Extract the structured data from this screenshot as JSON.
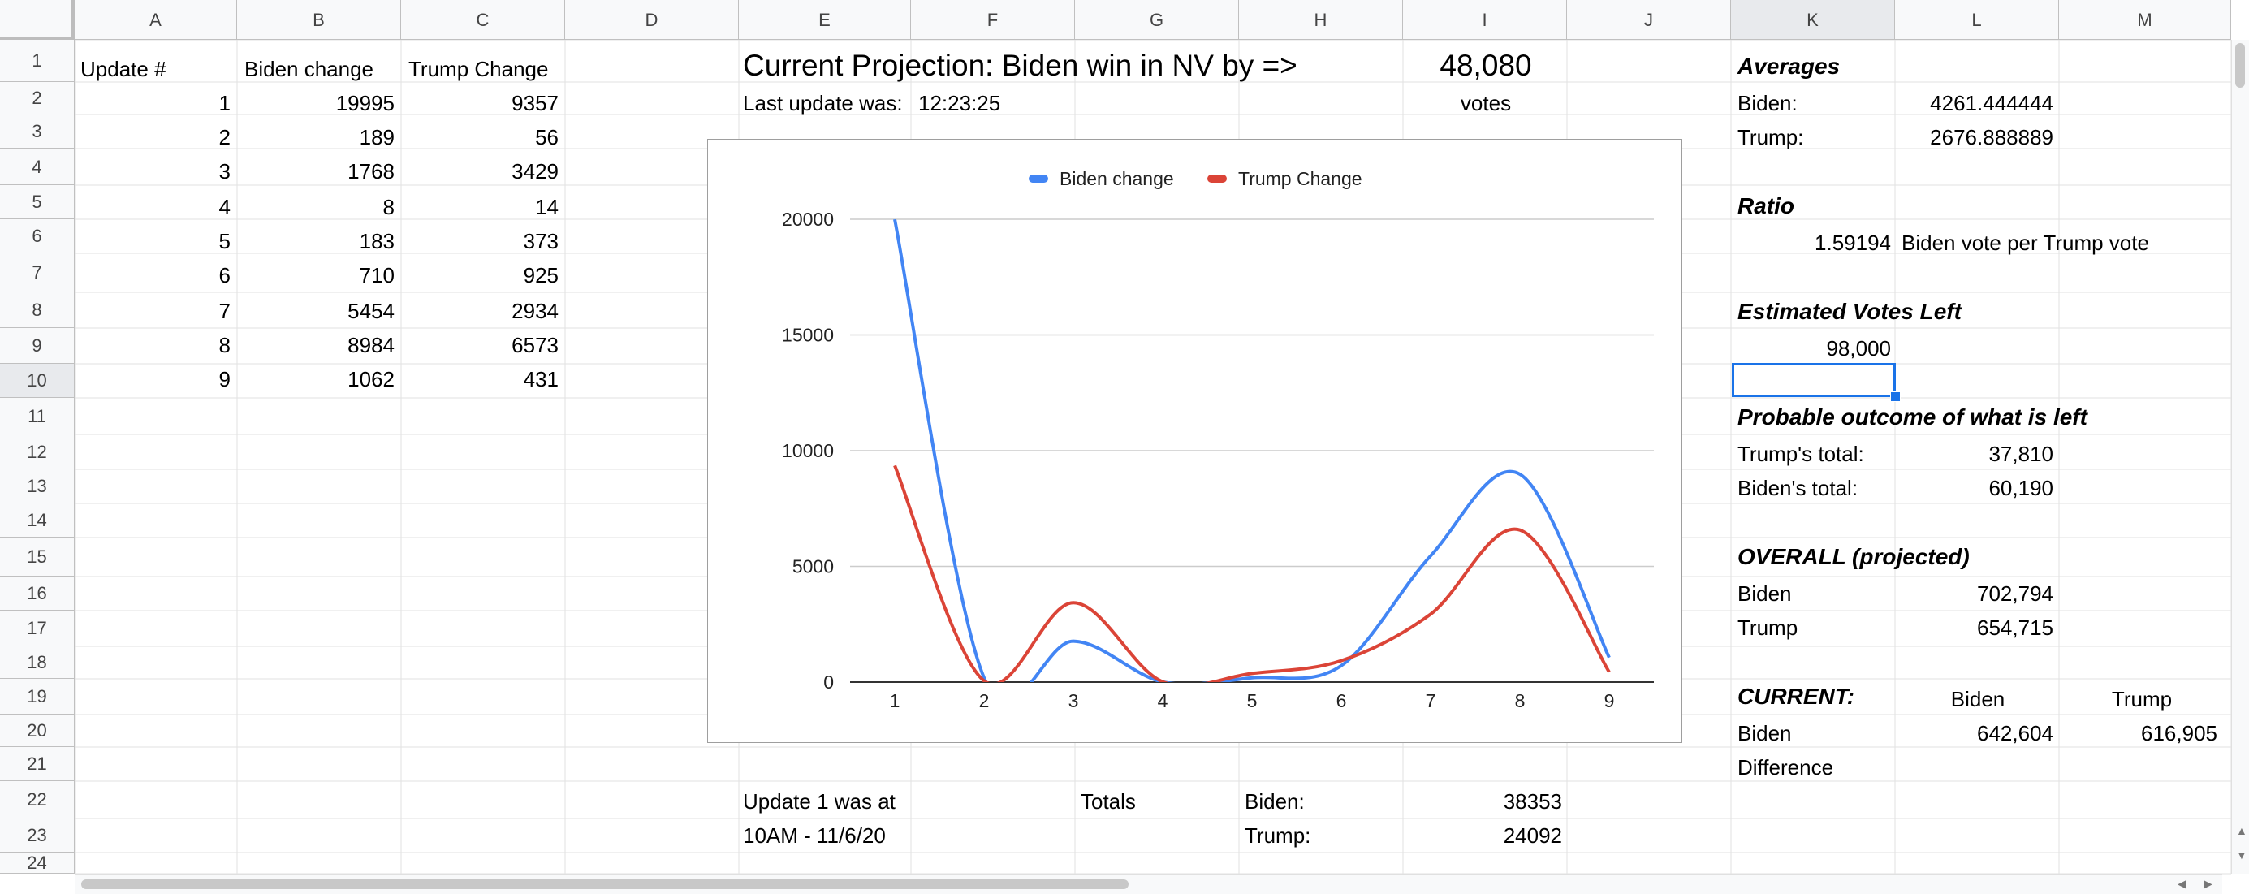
{
  "columns": [
    "A",
    "B",
    "C",
    "D",
    "E",
    "F",
    "G",
    "H",
    "I",
    "J",
    "K",
    "L",
    "M"
  ],
  "rows": [
    "1",
    "2",
    "3",
    "4",
    "5",
    "6",
    "7",
    "8",
    "9",
    "10",
    "11",
    "12",
    "13",
    "14",
    "15",
    "16",
    "17",
    "18",
    "19",
    "20",
    "21",
    "22",
    "23",
    "24"
  ],
  "table": {
    "headers": [
      "Update #",
      "Biden change",
      "Trump Change"
    ],
    "rows": [
      [
        "1",
        "19995",
        "9357"
      ],
      [
        "2",
        "189",
        "56"
      ],
      [
        "3",
        "1768",
        "3429"
      ],
      [
        "4",
        "8",
        "14"
      ],
      [
        "5",
        "183",
        "373"
      ],
      [
        "6",
        "710",
        "925"
      ],
      [
        "7",
        "5454",
        "2934"
      ],
      [
        "8",
        "8984",
        "6573"
      ],
      [
        "9",
        "1062",
        "431"
      ]
    ]
  },
  "projection": {
    "title": "Current Projection: Biden win in NV by =>",
    "margin": "48,080",
    "margin_unit": "votes",
    "last_update_label": "Last update was:",
    "last_update_time": "12:23:25"
  },
  "footer": {
    "update1_label": "Update 1 was at",
    "update1_time": "10AM - 11/6/20",
    "totals_label": "Totals",
    "biden_label": "Biden:",
    "biden_total": "38353",
    "trump_label": "Trump:",
    "trump_total": "24092"
  },
  "stats": {
    "averages_label": "Averages",
    "avg_biden_label": "Biden:",
    "avg_biden": "4261.444444",
    "avg_trump_label": "Trump:",
    "avg_trump": "2676.888889",
    "ratio_label": "Ratio",
    "ratio_value": "1.59194",
    "ratio_desc": "Biden vote per Trump vote",
    "est_left_label": "Estimated Votes Left",
    "est_left": "98,000",
    "probable_label": "Probable outcome of what is left",
    "prob_trump_label": "Trump's total:",
    "prob_trump": "37,810",
    "prob_biden_label": "Biden's total:",
    "prob_biden": "60,190",
    "overall_label": "OVERALL (projected)",
    "overall_biden_label": "Biden",
    "overall_biden": "702,794",
    "overall_trump_label": "Trump",
    "overall_trump": "654,715",
    "current_label": "CURRENT:",
    "current_col_biden": "Biden",
    "current_col_trump": "Trump",
    "current_row_biden": "Biden",
    "current_biden": "642,604",
    "current_trump": "616,905",
    "difference_label": "Difference"
  },
  "chart_data": {
    "type": "line",
    "categories": [
      "1",
      "2",
      "3",
      "4",
      "5",
      "6",
      "7",
      "8",
      "9"
    ],
    "series": [
      {
        "name": "Biden change",
        "color": "#4285f4",
        "values": [
          19995,
          189,
          1768,
          8,
          183,
          710,
          5454,
          8984,
          1062
        ]
      },
      {
        "name": "Trump Change",
        "color": "#db4437",
        "values": [
          9357,
          56,
          3429,
          14,
          373,
          925,
          2934,
          6573,
          431
        ]
      }
    ],
    "yticks": [
      "0",
      "5000",
      "10000",
      "15000",
      "20000"
    ],
    "ylim": [
      0,
      20000
    ],
    "grid": true,
    "legend": "top",
    "smooth": true
  },
  "colors": {
    "selection": "#1a73e8",
    "gridline": "#e2e2e2",
    "header_bg": "#f8f9fa"
  }
}
